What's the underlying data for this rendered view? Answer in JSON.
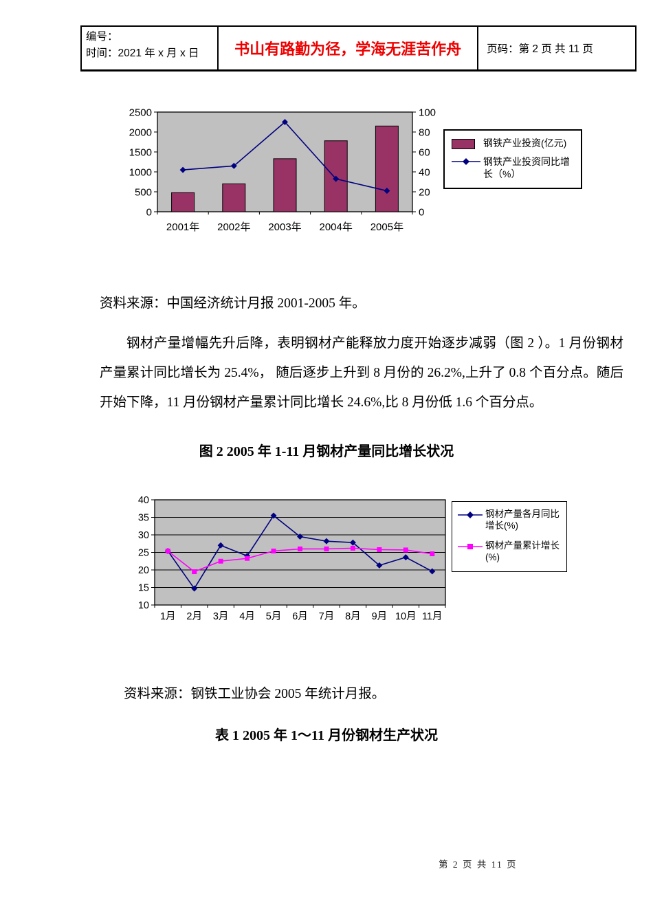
{
  "header": {
    "number_label": "编号：",
    "time_label": "时间：2021 年 x 月 x 日",
    "motto": "书山有路勤为径，学海无涯苦作舟",
    "motto_color": "#ee0000",
    "page_info": "页码：第 2 页  共 11 页"
  },
  "body": {
    "source1": "资料来源：中国经济统计月报 2001-2005 年。",
    "paragraph": "钢材产量增幅先升后降，表明钢材产能释放力度开始逐步减弱（图 2 ）。1 月份钢材产量累计同比增长为 25.4%， 随后逐步上升到 8 月份的 26.2%,上升了 0.8 个百分点。随后开始下降，11 月份钢材产量累计同比增长 24.6%,比 8 月份低 1.6 个百分点。",
    "figure2_title": "图 2  2005 年 1-11 月钢材产量同比增长状况",
    "source2": "资料来源：钢铁工业协会 2005 年统计月报。",
    "table1_title": "表 1  2005 年 1～11 月份钢材生产状况"
  },
  "footer": {
    "page_text": "第 2 页 共 11 页"
  },
  "chart_data": [
    {
      "type": "bar",
      "subtype": "bar-line-combo",
      "categories": [
        "2001年",
        "2002年",
        "2003年",
        "2004年",
        "2005年"
      ],
      "series": [
        {
          "name": "钢铁产业投资(亿元)",
          "type": "bar",
          "axis": "left",
          "color": "#993366",
          "values": [
            480,
            700,
            1330,
            1780,
            2150
          ]
        },
        {
          "name": "钢铁产业投资同比增长（%）",
          "type": "line",
          "axis": "right",
          "color": "#000080",
          "marker": "diamond",
          "values": [
            42,
            46,
            90,
            33,
            21
          ]
        }
      ],
      "y_left": {
        "min": 0,
        "max": 2500,
        "step": 500
      },
      "y_right": {
        "min": 0,
        "max": 100,
        "step": 20
      },
      "plot_bg": "#c0c0c0",
      "grid": false,
      "legend_position": "right",
      "title": "",
      "xlabel": "",
      "ylabel": ""
    },
    {
      "type": "line",
      "categories": [
        "1月",
        "2月",
        "3月",
        "4月",
        "5月",
        "6月",
        "7月",
        "8月",
        "9月",
        "10月",
        "11月"
      ],
      "series": [
        {
          "name": "钢材产量各月同比增长(%)",
          "type": "line",
          "axis": "left",
          "color": "#000080",
          "marker": "diamond",
          "values": [
            25.4,
            14.7,
            27.0,
            24.0,
            35.5,
            29.5,
            28.2,
            27.8,
            21.3,
            23.6,
            19.6
          ]
        },
        {
          "name": "钢材产量累计增长(%)",
          "type": "line",
          "axis": "left",
          "color": "#ff00ff",
          "marker": "square",
          "values": [
            25.4,
            19.5,
            22.5,
            23.3,
            25.4,
            26.0,
            26.0,
            26.2,
            25.8,
            25.7,
            24.6
          ]
        }
      ],
      "y_left": {
        "min": 10,
        "max": 40,
        "step": 5
      },
      "plot_bg": "#c0c0c0",
      "grid": true,
      "legend_position": "right",
      "title": "",
      "xlabel": "",
      "ylabel": ""
    }
  ]
}
